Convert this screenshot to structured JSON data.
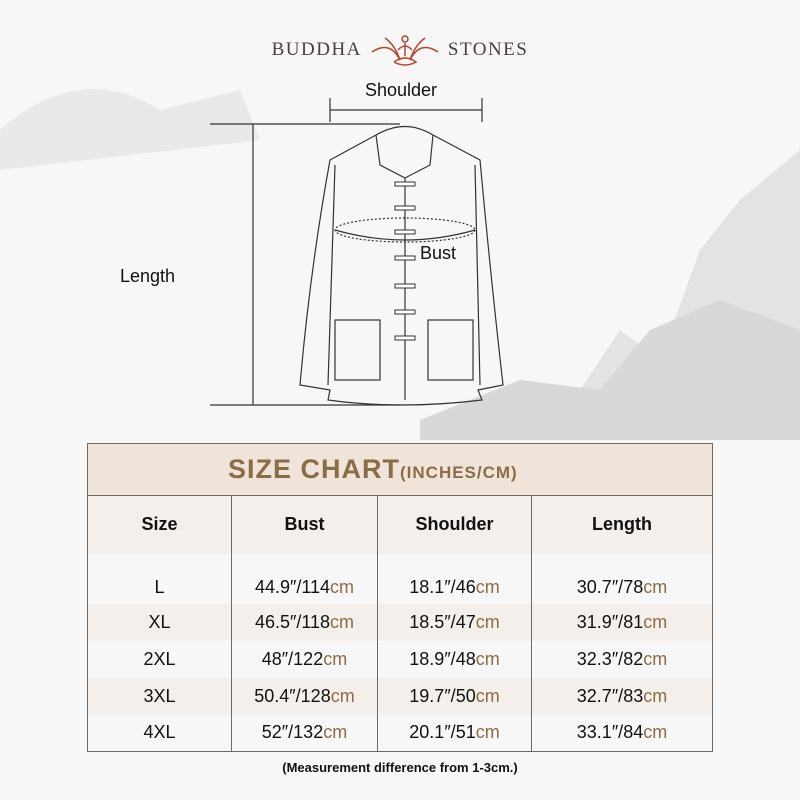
{
  "brand": {
    "left": "BUDDHA",
    "right": "STONES",
    "accent": "#b5462c"
  },
  "diagram": {
    "shoulder": "Shoulder",
    "bust": "Bust",
    "length": "Length"
  },
  "table": {
    "title": "SIZE CHART",
    "title_unit": "(INCHES/CM)",
    "headers": [
      "Size",
      "Bust",
      "Shoulder",
      "Length"
    ],
    "rows": [
      {
        "size": "L",
        "bust": "44.9″/114",
        "shoulder": "18.1″/46",
        "length": "30.7″/78"
      },
      {
        "size": "XL",
        "bust": "46.5″/118",
        "shoulder": "18.5″/47",
        "length": "31.9″/81"
      },
      {
        "size": "2XL",
        "bust": "48″/122",
        "shoulder": "18.9″/48",
        "length": "32.3″/82"
      },
      {
        "size": "3XL",
        "bust": "50.4″/128",
        "shoulder": "19.7″/50",
        "length": "32.7″/83"
      },
      {
        "size": "4XL",
        "bust": "52″/132",
        "shoulder": "20.1″/51",
        "length": "33.1″/84"
      }
    ],
    "unit": "cm",
    "accent": "#8b6d45"
  },
  "note": "(Measurement difference from 1-3cm.)"
}
